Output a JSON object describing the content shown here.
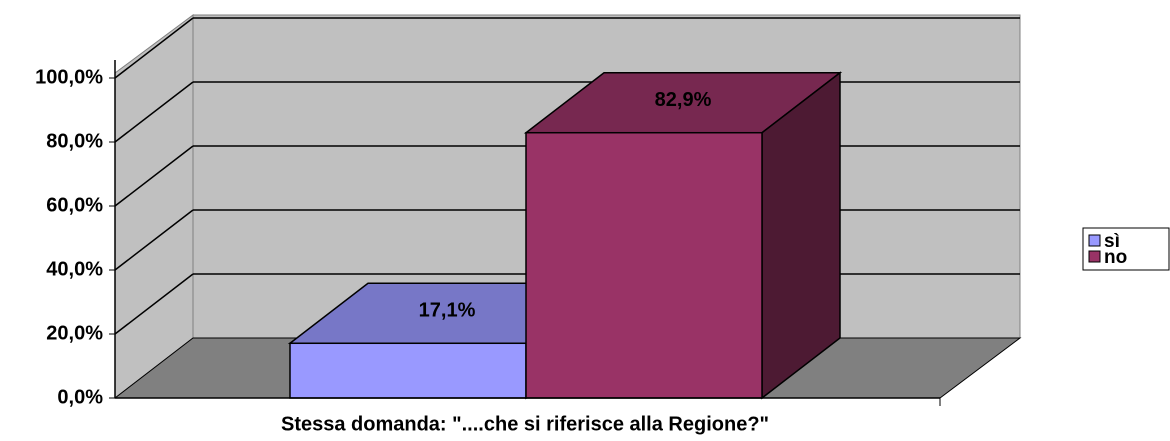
{
  "chart_data": {
    "type": "bar3d",
    "x_label": "Stessa domanda: \"....che si riferisce alla Regione?\"",
    "series": [
      {
        "name": "sì",
        "color": "#9999ff",
        "values": [
          17.1
        ],
        "value_labels": [
          "17,1%"
        ]
      },
      {
        "name": "no",
        "color": "#993366",
        "values": [
          82.9
        ],
        "value_labels": [
          "82,9%"
        ]
      }
    ],
    "ylim": [
      0,
      100
    ],
    "yticks": [
      {
        "value": 0,
        "label": "0,0%"
      },
      {
        "value": 20,
        "label": "20,0%"
      },
      {
        "value": 40,
        "label": "40,0%"
      },
      {
        "value": 60,
        "label": "60,0%"
      },
      {
        "value": 80,
        "label": "80,0%"
      },
      {
        "value": 100,
        "label": "100,0%"
      }
    ],
    "grid": true,
    "legend": "right"
  }
}
